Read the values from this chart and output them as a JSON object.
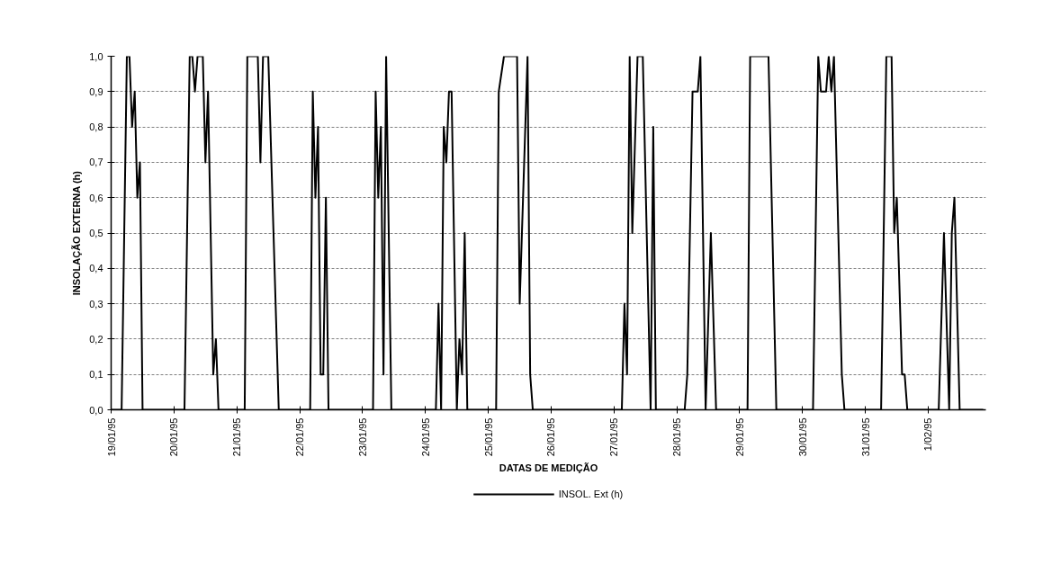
{
  "chart_data": {
    "type": "line",
    "xlabel": "DATAS DE MEDIÇÃO",
    "ylabel": "INSOLAÇÃO EXTERNA (h)",
    "xlim": [
      "1995-01-19T00:00",
      "1995-02-01T22:00"
    ],
    "xticks": [
      {
        "value": "1995-01-19",
        "label": "19/01/95"
      },
      {
        "value": "1995-01-20",
        "label": "20/01/95"
      },
      {
        "value": "1995-01-21",
        "label": "21/01/95"
      },
      {
        "value": "1995-01-22",
        "label": "22/01/95"
      },
      {
        "value": "1995-01-23",
        "label": "23/01/95"
      },
      {
        "value": "1995-01-24",
        "label": "24/01/95"
      },
      {
        "value": "1995-01-25",
        "label": "25/01/95"
      },
      {
        "value": "1995-01-26",
        "label": "26/01/95"
      },
      {
        "value": "1995-01-27",
        "label": "27/01/95"
      },
      {
        "value": "1995-01-28",
        "label": "28/01/95"
      },
      {
        "value": "1995-01-29",
        "label": "29/01/95"
      },
      {
        "value": "1995-01-30",
        "label": "30/01/95"
      },
      {
        "value": "1995-01-31",
        "label": "31/01/95"
      },
      {
        "value": "1995-02-01",
        "label": "1/02/95"
      }
    ],
    "ylim": [
      0,
      1
    ],
    "yticks": [
      {
        "value": 0,
        "label": "0,0"
      },
      {
        "value": 0.1,
        "label": "0,1"
      },
      {
        "value": 0.2,
        "label": "0,2"
      },
      {
        "value": 0.3,
        "label": "0,3"
      },
      {
        "value": 0.4,
        "label": "0,4"
      },
      {
        "value": 0.5,
        "label": "0,5"
      },
      {
        "value": 0.6,
        "label": "0,6"
      },
      {
        "value": 0.7,
        "label": "0,7"
      },
      {
        "value": 0.8,
        "label": "0,8"
      },
      {
        "value": 0.9,
        "label": "0,9"
      },
      {
        "value": 1,
        "label": "1,0"
      }
    ],
    "grid": "y",
    "legend": "bottom",
    "series": [
      {
        "name": "INSOL. Ext (h)",
        "color": "#000000",
        "x": [
          "1995-01-19T00:00",
          "1995-01-19T04:00",
          "1995-01-19T06:00",
          "1995-01-19T07:00",
          "1995-01-19T08:00",
          "1995-01-19T09:00",
          "1995-01-19T10:00",
          "1995-01-19T11:00",
          "1995-01-19T12:00",
          "1995-01-20T04:00",
          "1995-01-20T06:00",
          "1995-01-20T07:00",
          "1995-01-20T08:00",
          "1995-01-20T09:00",
          "1995-01-20T11:00",
          "1995-01-20T12:00",
          "1995-01-20T13:00",
          "1995-01-20T15:00",
          "1995-01-20T16:00",
          "1995-01-20T17:00",
          "1995-01-21T03:00",
          "1995-01-21T04:00",
          "1995-01-21T08:00",
          "1995-01-21T09:00",
          "1995-01-21T10:00",
          "1995-01-21T12:00",
          "1995-01-21T16:00",
          "1995-01-22T04:00",
          "1995-01-22T05:00",
          "1995-01-22T06:00",
          "1995-01-22T07:00",
          "1995-01-22T08:00",
          "1995-01-22T09:00",
          "1995-01-22T10:00",
          "1995-01-22T11:00",
          "1995-01-23T04:00",
          "1995-01-23T05:00",
          "1995-01-23T06:00",
          "1995-01-23T07:00",
          "1995-01-23T08:00",
          "1995-01-23T09:00",
          "1995-01-23T11:00",
          "1995-01-24T04:00",
          "1995-01-24T05:00",
          "1995-01-24T06:00",
          "1995-01-24T07:00",
          "1995-01-24T08:00",
          "1995-01-24T09:00",
          "1995-01-24T10:00",
          "1995-01-24T12:00",
          "1995-01-24T13:00",
          "1995-01-24T14:00",
          "1995-01-24T15:00",
          "1995-01-24T16:00",
          "1995-01-25T03:00",
          "1995-01-25T04:00",
          "1995-01-25T06:00",
          "1995-01-25T11:00",
          "1995-01-25T12:00",
          "1995-01-25T15:00",
          "1995-01-25T16:00",
          "1995-01-25T17:00",
          "1995-01-27T03:00",
          "1995-01-27T04:00",
          "1995-01-27T05:00",
          "1995-01-27T06:00",
          "1995-01-27T07:00",
          "1995-01-27T09:00",
          "1995-01-27T11:00",
          "1995-01-27T14:00",
          "1995-01-27T15:00",
          "1995-01-27T16:00",
          "1995-01-28T03:00",
          "1995-01-28T04:00",
          "1995-01-28T06:00",
          "1995-01-28T08:00",
          "1995-01-28T09:00",
          "1995-01-28T11:00",
          "1995-01-28T13:00",
          "1995-01-28T15:00",
          "1995-01-29T03:00",
          "1995-01-29T04:00",
          "1995-01-29T11:00",
          "1995-01-29T14:00",
          "1995-01-30T04:00",
          "1995-01-30T06:00",
          "1995-01-30T07:00",
          "1995-01-30T09:00",
          "1995-01-30T10:00",
          "1995-01-30T11:00",
          "1995-01-30T12:00",
          "1995-01-30T15:00",
          "1995-01-30T16:00",
          "1995-01-31T06:00",
          "1995-01-31T08:00",
          "1995-01-31T10:00",
          "1995-01-31T11:00",
          "1995-01-31T12:00",
          "1995-01-31T14:00",
          "1995-01-31T15:00",
          "1995-01-31T16:00",
          "1995-02-01T04:00",
          "1995-02-01T06:00",
          "1995-02-01T08:00",
          "1995-02-01T09:00",
          "1995-02-01T10:00",
          "1995-02-01T12:00",
          "1995-02-01T21:00"
        ],
        "values": [
          0,
          0,
          1,
          1,
          0.8,
          0.9,
          0.6,
          0.7,
          0,
          0,
          1,
          1,
          0.9,
          1,
          1,
          0.7,
          0.9,
          0.1,
          0.2,
          0,
          0,
          1,
          1,
          0.7,
          1,
          1,
          0,
          0,
          0.9,
          0.6,
          0.8,
          0.1,
          0.1,
          0.6,
          0,
          0,
          0.9,
          0.6,
          0.8,
          0.1,
          1,
          0,
          0,
          0.3,
          0,
          0.8,
          0.7,
          0.9,
          0.9,
          0,
          0.2,
          0.1,
          0.5,
          0,
          0,
          0.9,
          1,
          1,
          0.3,
          1,
          0.1,
          0,
          0,
          0.3,
          0.1,
          1,
          0.5,
          1,
          1,
          0,
          0.8,
          0,
          0,
          0.1,
          0.9,
          0.9,
          1,
          0,
          0.5,
          0,
          0,
          1,
          1,
          0,
          0,
          1,
          0.9,
          0.9,
          1,
          0.9,
          1,
          0.1,
          0,
          0,
          1,
          1,
          0.5,
          0.6,
          0.1,
          0.1,
          0,
          0,
          0.5,
          0,
          0.5,
          0.6,
          0,
          0
        ]
      }
    ]
  }
}
